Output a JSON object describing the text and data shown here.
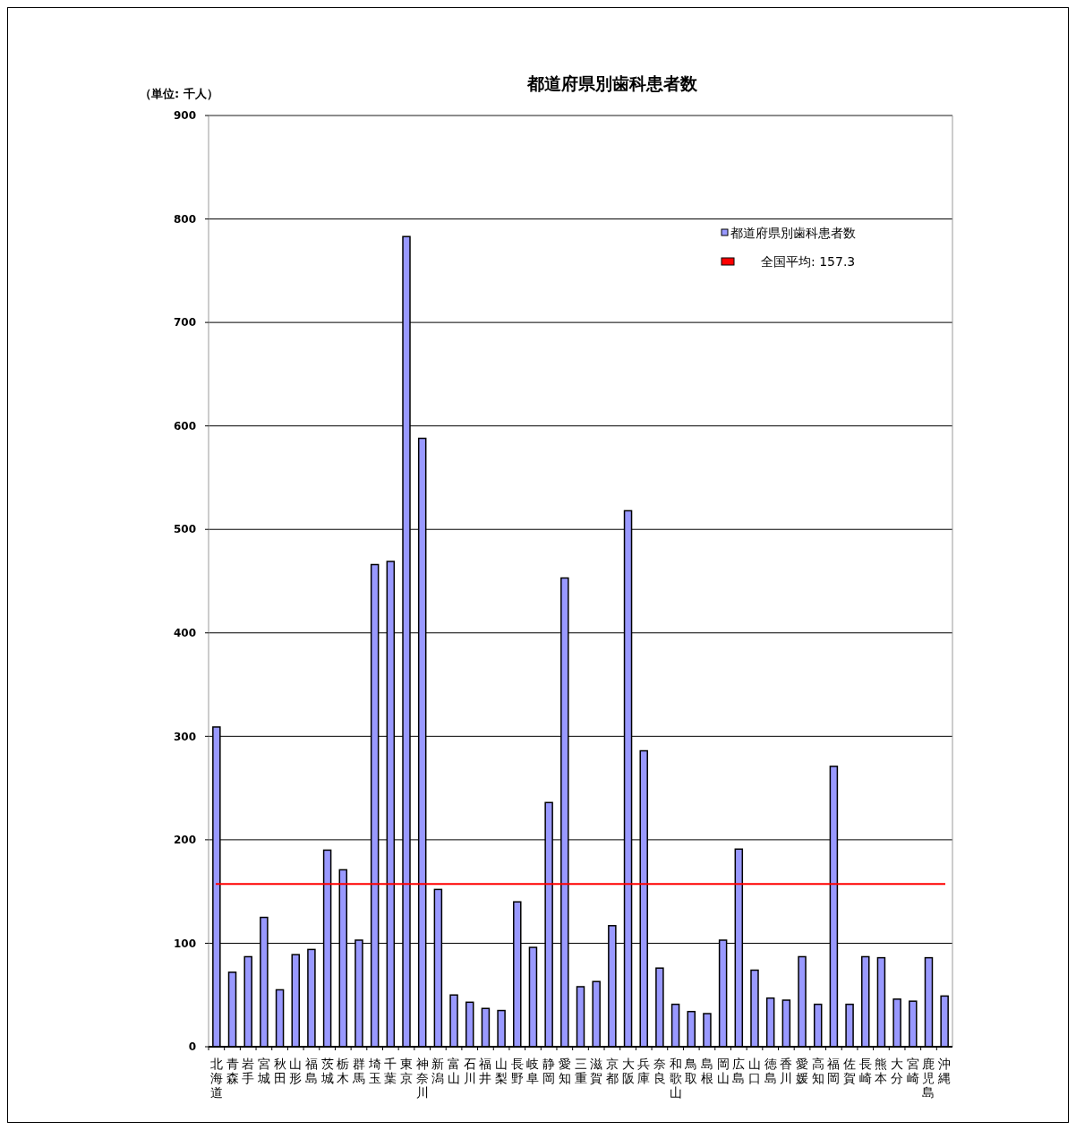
{
  "chart_data": {
    "type": "bar",
    "title": "都道府県別歯科患者数",
    "ylabel": "（単位: 千人）",
    "categories": [
      "北海道",
      "青森",
      "岩手",
      "宮城",
      "秋田",
      "山形",
      "福島",
      "茨城",
      "栃木",
      "群馬",
      "埼玉",
      "千葉",
      "東京",
      "神奈川",
      "新潟",
      "富山",
      "石川",
      "福井",
      "山梨",
      "長野",
      "岐阜",
      "静岡",
      "愛知",
      "三重",
      "滋賀",
      "京都",
      "大阪",
      "兵庫",
      "奈良",
      "和歌山",
      "鳥取",
      "島根",
      "岡山",
      "広島",
      "山口",
      "徳島",
      "香川",
      "愛媛",
      "高知",
      "福岡",
      "佐賀",
      "長崎",
      "熊本",
      "大分",
      "宮崎",
      "鹿児島",
      "沖縄"
    ],
    "series": [
      {
        "name": "都道府県別歯科患者数",
        "color": "#9999ff",
        "values": [
          309,
          72,
          87,
          125,
          55,
          89,
          94,
          190,
          171,
          103,
          466,
          469,
          783,
          588,
          152,
          50,
          43,
          37,
          35,
          140,
          96,
          236,
          453,
          58,
          63,
          117,
          518,
          286,
          76,
          41,
          34,
          32,
          103,
          191,
          74,
          47,
          45,
          87,
          41,
          271,
          41,
          87,
          86,
          46,
          44,
          86,
          49
        ]
      }
    ],
    "ylim": [
      0,
      900
    ],
    "yticks": [
      0,
      100,
      200,
      300,
      400,
      500,
      600,
      700,
      800,
      900
    ],
    "grid": "y",
    "legend": "top right",
    "ref_lines": [
      {
        "axis": "y",
        "value": 157.3,
        "label": "全国平均: 157.3",
        "color": "#ff0000"
      }
    ]
  }
}
